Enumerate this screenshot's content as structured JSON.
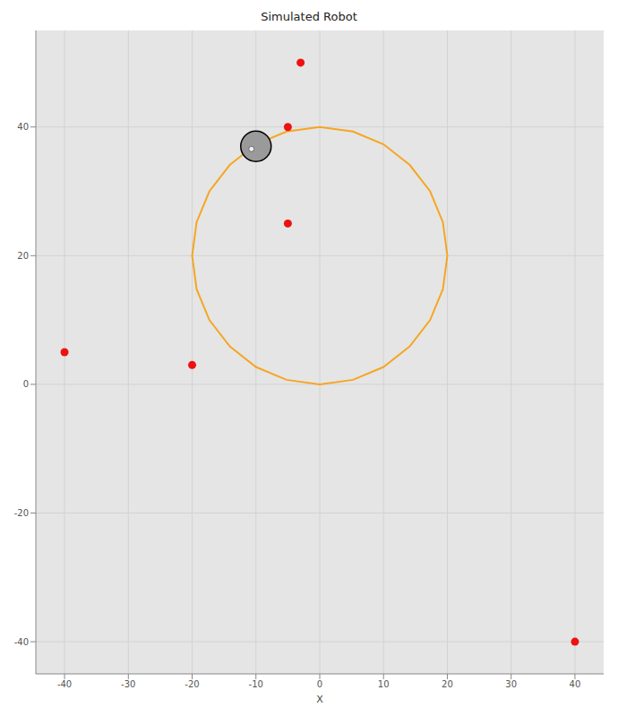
{
  "chart_data": {
    "type": "scatter",
    "title": "Simulated Robot",
    "x_label": "X",
    "xlim": [
      -44.5,
      44.5
    ],
    "ylim": [
      -45,
      55
    ],
    "xticks": [
      -40,
      -30,
      -20,
      -10,
      0,
      10,
      20,
      30,
      40
    ],
    "yticks": [
      -40,
      -20,
      0,
      20,
      40
    ],
    "grid": true,
    "series": [
      {
        "type": "line",
        "color": "#f5a623",
        "line_style": "solid",
        "x": [
          20,
          19.3,
          17.3,
          14.1,
          10,
          5.2,
          0,
          -5.2,
          -10,
          -14.1,
          -17.3,
          -19.3,
          -20,
          -19.3,
          -17.3,
          -14.1,
          -10,
          -5.2,
          0,
          5.2,
          10,
          14.1,
          17.3,
          19.3,
          20
        ],
        "values": [
          20,
          25.2,
          30,
          34.1,
          37.3,
          39.3,
          40,
          39.3,
          37.3,
          34.1,
          30,
          25.2,
          20,
          14.8,
          10,
          5.9,
          2.7,
          0.7,
          0,
          0.7,
          2.7,
          5.9,
          10,
          14.8,
          20
        ]
      },
      {
        "type": "scatter",
        "color": "#ee1111",
        "marker": "circle",
        "x": [
          -3,
          -5,
          -5,
          -40,
          -20,
          40
        ],
        "values": [
          50,
          40,
          25,
          5,
          3,
          -40
        ]
      },
      {
        "type": "scatter",
        "color": "#9a9a9a",
        "marker": "robot",
        "x": [
          -10
        ],
        "values": [
          37
        ]
      }
    ]
  }
}
